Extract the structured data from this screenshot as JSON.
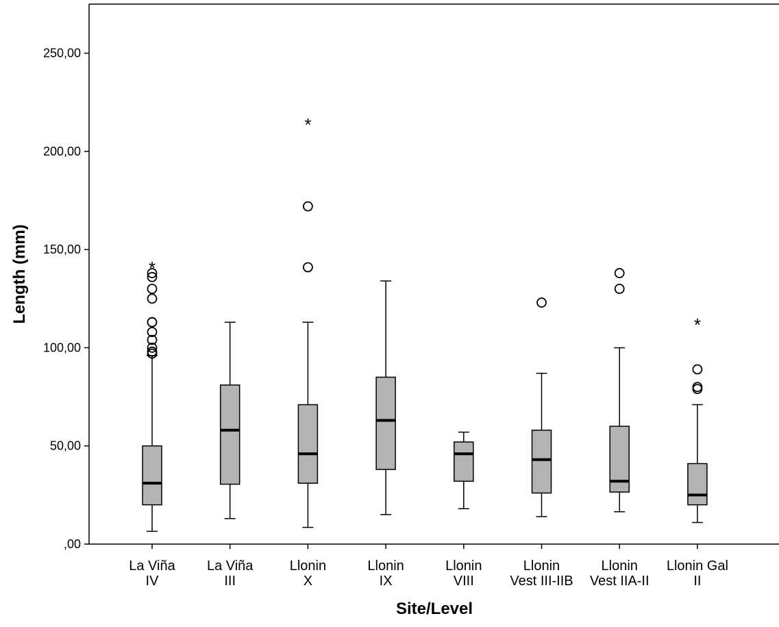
{
  "chart_data": {
    "type": "boxplot",
    "xlabel": "Site/Level",
    "ylabel": "Length (mm)",
    "ylim": [
      0,
      275
    ],
    "yticks": [
      0,
      50,
      100,
      150,
      200,
      250
    ],
    "ytick_labels": [
      ",00",
      "50,00",
      "100,00",
      "150,00",
      "200,00",
      "250,00"
    ],
    "grid": false,
    "categories": [
      {
        "label_lines": [
          "La Viña",
          "IV"
        ],
        "min": 6.5,
        "q1": 20,
        "median": 31,
        "q3": 50,
        "max": 96,
        "outliers": [
          97,
          98,
          100,
          104,
          108,
          113,
          113,
          125,
          130,
          136,
          138
        ],
        "extremes": [
          142
        ]
      },
      {
        "label_lines": [
          "La Viña",
          "III"
        ],
        "min": 13,
        "q1": 30.5,
        "median": 58,
        "q3": 81,
        "max": 113,
        "outliers": [],
        "extremes": []
      },
      {
        "label_lines": [
          "Llonin",
          "X"
        ],
        "min": 8.5,
        "q1": 31,
        "median": 46,
        "q3": 71,
        "max": 113,
        "outliers": [
          141,
          172
        ],
        "extremes": [
          215
        ]
      },
      {
        "label_lines": [
          "Llonin",
          "IX"
        ],
        "min": 15,
        "q1": 38,
        "median": 63,
        "q3": 85,
        "max": 134,
        "outliers": [],
        "extremes": []
      },
      {
        "label_lines": [
          "Llonin",
          "VIII"
        ],
        "min": 18,
        "q1": 32,
        "median": 46,
        "q3": 52,
        "max": 57,
        "outliers": [],
        "extremes": []
      },
      {
        "label_lines": [
          "Llonin",
          "Vest III-IIB"
        ],
        "min": 14,
        "q1": 26,
        "median": 43,
        "q3": 58,
        "max": 87,
        "outliers": [
          123
        ],
        "extremes": []
      },
      {
        "label_lines": [
          "Llonin",
          "Vest IIA-II"
        ],
        "min": 16.5,
        "q1": 26.5,
        "median": 32,
        "q3": 60,
        "max": 100,
        "outliers": [
          130,
          138
        ],
        "extremes": []
      },
      {
        "label_lines": [
          "Llonin Gal",
          "II"
        ],
        "min": 11,
        "q1": 20,
        "median": 25,
        "q3": 41,
        "max": 71,
        "outliers": [
          79,
          80,
          89
        ],
        "extremes": [
          113
        ]
      }
    ]
  }
}
